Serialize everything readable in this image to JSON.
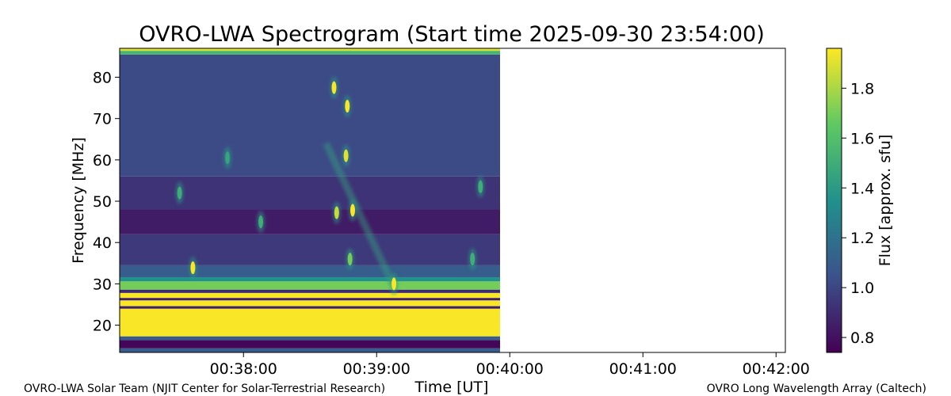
{
  "chart_data": {
    "type": "heatmap",
    "title": "OVRO-LWA Spectrogram (Start time 2025-09-30 23:54:00)",
    "xlabel": "Time [UT]",
    "ylabel": "Frequency [MHz]",
    "x_ticks": [
      "00:38:00",
      "00:39:00",
      "00:40:00",
      "00:41:00",
      "00:42:00"
    ],
    "x_tick_minutes": [
      38,
      39,
      40,
      41,
      42
    ],
    "xlim_minutes": [
      37.07,
      42.07
    ],
    "data_end_minute": 40.0,
    "y_ticks": [
      20,
      30,
      40,
      50,
      60,
      70,
      80
    ],
    "ylim": [
      13.4,
      87.0
    ],
    "colorbar": {
      "label": "Flux [approx. sfu]",
      "ticks": [
        0.8,
        1.0,
        1.2,
        1.4,
        1.6,
        1.8
      ],
      "tick_labels": [
        "0.8",
        "1.0",
        "1.2",
        "1.4",
        "1.6",
        "1.8"
      ],
      "range": [
        0.74,
        1.96
      ],
      "colormap": [
        "#440154",
        "#3b528b",
        "#21918c",
        "#5ec962",
        "#fde725"
      ]
    },
    "bands": [
      {
        "f0": 13.4,
        "f1": 14.4,
        "v": 1.1
      },
      {
        "f0": 14.4,
        "f1": 16.4,
        "v": 0.76
      },
      {
        "f0": 16.4,
        "f1": 17.3,
        "v": 1.1
      },
      {
        "f0": 17.3,
        "f1": 24.0,
        "v": 1.95
      },
      {
        "f0": 24.0,
        "f1": 24.6,
        "v": 0.85
      },
      {
        "f0": 24.6,
        "f1": 26.0,
        "v": 1.95
      },
      {
        "f0": 26.0,
        "f1": 26.6,
        "v": 0.85
      },
      {
        "f0": 26.6,
        "f1": 27.8,
        "v": 1.95
      },
      {
        "f0": 27.8,
        "f1": 28.6,
        "v": 0.9
      },
      {
        "f0": 28.6,
        "f1": 30.6,
        "v": 1.7
      },
      {
        "f0": 30.6,
        "f1": 31.6,
        "v": 1.35
      },
      {
        "f0": 31.6,
        "f1": 34.5,
        "v": 1.1
      },
      {
        "f0": 34.5,
        "f1": 42.0,
        "v": 0.95
      },
      {
        "f0": 42.0,
        "f1": 48.0,
        "v": 0.84
      },
      {
        "f0": 48.0,
        "f1": 56.0,
        "v": 0.93
      },
      {
        "f0": 56.0,
        "f1": 85.5,
        "v": 1.02
      },
      {
        "f0": 85.5,
        "f1": 86.4,
        "v": 1.55
      },
      {
        "f0": 86.4,
        "f1": 87.0,
        "v": 1.9
      }
    ],
    "bursts": [
      {
        "t": 37.62,
        "f": 33.9,
        "v": 1.95
      },
      {
        "t": 37.52,
        "f": 52.0,
        "v": 1.5
      },
      {
        "t": 37.88,
        "f": 60.5,
        "v": 1.45
      },
      {
        "t": 38.13,
        "f": 45.0,
        "v": 1.5
      },
      {
        "t": 38.68,
        "f": 77.5,
        "v": 1.95
      },
      {
        "t": 38.78,
        "f": 73.0,
        "v": 1.95
      },
      {
        "t": 38.77,
        "f": 61.0,
        "v": 1.9
      },
      {
        "t": 38.82,
        "f": 47.8,
        "v": 1.95
      },
      {
        "t": 38.7,
        "f": 47.2,
        "v": 1.85
      },
      {
        "t": 38.8,
        "f": 36.0,
        "v": 1.7
      },
      {
        "t": 39.13,
        "f": 30.0,
        "v": 1.95
      },
      {
        "t": 39.78,
        "f": 53.5,
        "v": 1.5
      },
      {
        "t": 39.72,
        "f": 36.0,
        "v": 1.5
      }
    ]
  },
  "credits": {
    "left": "OVRO-LWA Solar Team (NJIT Center for Solar-Terrestrial Research)",
    "right": "OVRO Long Wavelength Array (Caltech)"
  }
}
